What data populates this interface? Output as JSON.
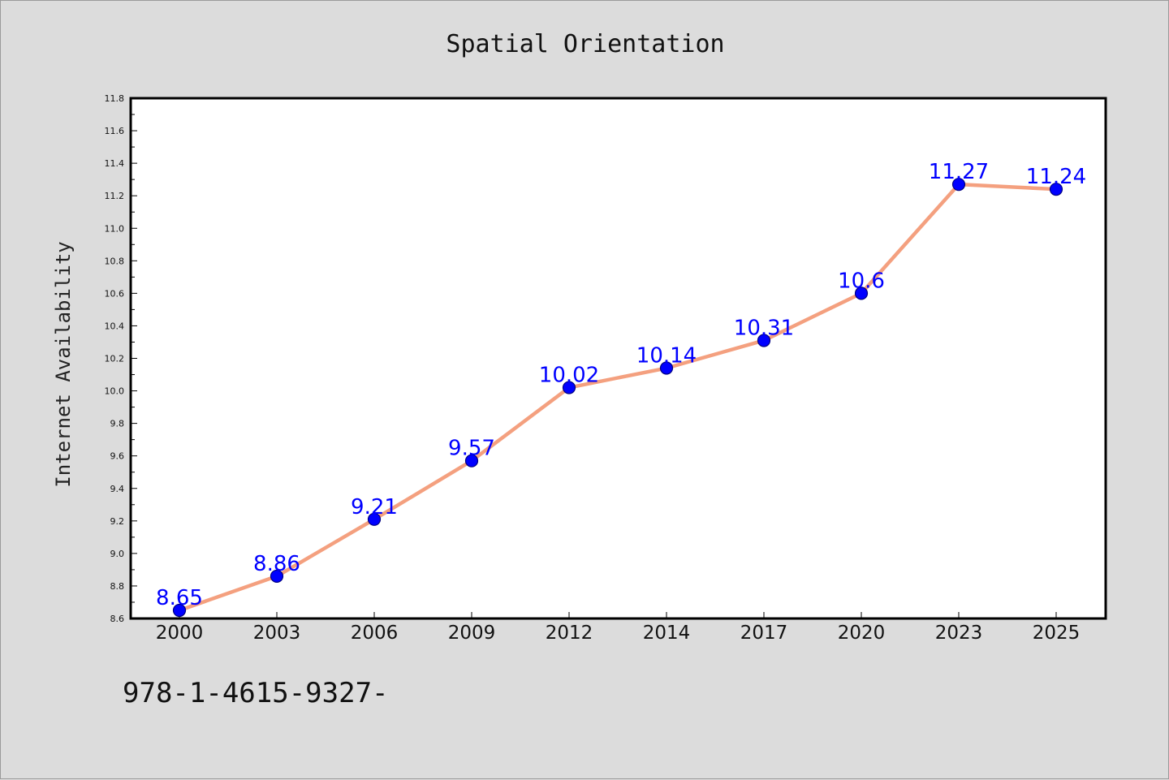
{
  "chart_data": {
    "type": "line",
    "title": "Spatial Orientation",
    "xlabel": "",
    "ylabel": "Internet Availability",
    "categories": [
      "2000",
      "2003",
      "2006",
      "2009",
      "2012",
      "2014",
      "2017",
      "2020",
      "2023",
      "2025"
    ],
    "series": [
      {
        "values": [
          8.65,
          8.86,
          9.21,
          9.57,
          10.02,
          10.14,
          10.31,
          10.6,
          11.27,
          11.24
        ],
        "labels": [
          "8.65",
          "8.86",
          "9.21",
          "9.57",
          "10.02",
          "10.14",
          "10.31",
          "10.6",
          "11.27",
          "11.24"
        ]
      }
    ],
    "ylim": [
      8.6,
      11.8
    ],
    "yticks": [
      "8.6",
      "8.8",
      "9.0",
      "9.2",
      "9.4",
      "9.6",
      "9.8",
      "10.0",
      "10.2",
      "10.4",
      "10.6",
      "10.8",
      "11.0",
      "11.2",
      "11.4",
      "11.6",
      "11.8"
    ],
    "grid": false,
    "colors": {
      "line": "#f4a07f",
      "marker": "#0000ff",
      "marker_edge": "#000080",
      "data_label": "#0000ff",
      "background": "#dcdcdc",
      "plot_area": "#ffffff"
    }
  },
  "footer_text": "978-1-4615-9327-"
}
